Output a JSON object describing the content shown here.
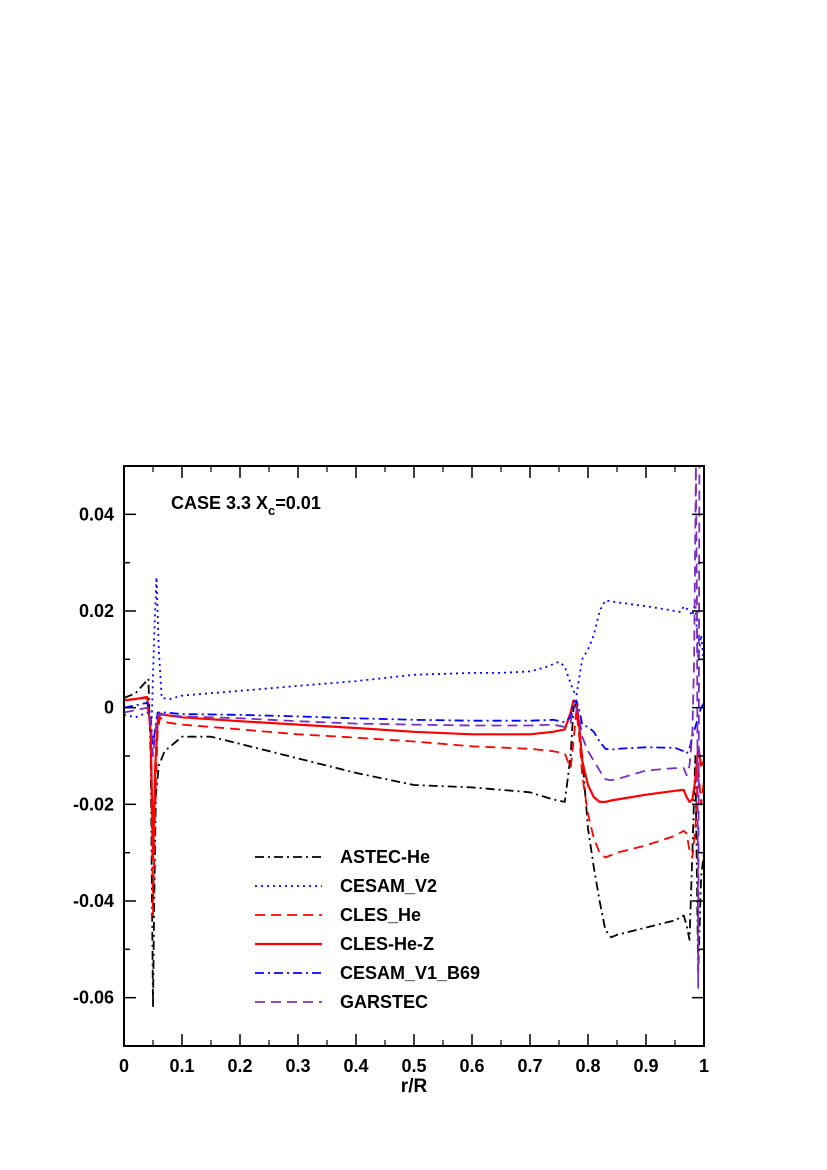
{
  "chart_data": {
    "type": "line",
    "title": "",
    "annotation": {
      "prefix": "CASE 3.3 X",
      "subscript": "c",
      "suffix": "=0.01"
    },
    "xlabel": "r/R",
    "ylabel": "",
    "xlim": [
      0,
      1
    ],
    "ylim": [
      -0.07,
      0.05
    ],
    "x_ticks": [
      0,
      0.1,
      0.2,
      0.3,
      0.4,
      0.5,
      0.6,
      0.7,
      0.8,
      0.9,
      1
    ],
    "x_tick_labels": [
      "0",
      "0.1",
      "0.2",
      "0.3",
      "0.4",
      "0.5",
      "0.6",
      "0.7",
      "0.8",
      "0.9",
      "1"
    ],
    "y_ticks": [
      -0.06,
      -0.04,
      -0.02,
      0,
      0.02,
      0.04
    ],
    "y_tick_labels": [
      "-0.06",
      "-0.04",
      "-0.02",
      "0",
      "0.02",
      "0.04"
    ],
    "grid": false,
    "legend_position": "lower-center",
    "series": [
      {
        "name": "ASTEC-He",
        "color": "#000000",
        "dash": "dashdot",
        "x": [
          0,
          0.02,
          0.035,
          0.042,
          0.046,
          0.05,
          0.052,
          0.055,
          0.06,
          0.07,
          0.1,
          0.15,
          0.2,
          0.3,
          0.4,
          0.5,
          0.6,
          0.7,
          0.74,
          0.76,
          0.77,
          0.775,
          0.78,
          0.79,
          0.8,
          0.81,
          0.82,
          0.83,
          0.84,
          0.85,
          0.9,
          0.95,
          0.965,
          0.97,
          0.975,
          0.98,
          0.985,
          0.99,
          0.995,
          1.0
        ],
        "y": [
          0.002,
          0.003,
          0.005,
          0.006,
          -0.01,
          -0.062,
          -0.04,
          -0.018,
          -0.012,
          -0.009,
          -0.006,
          -0.006,
          -0.0075,
          -0.0105,
          -0.0135,
          -0.016,
          -0.0165,
          -0.0175,
          -0.019,
          -0.0195,
          -0.01,
          0.0,
          0.001,
          -0.01,
          -0.025,
          -0.033,
          -0.04,
          -0.046,
          -0.0475,
          -0.047,
          -0.0455,
          -0.044,
          -0.043,
          -0.045,
          -0.048,
          -0.03,
          -0.01,
          -0.055,
          -0.035,
          -0.03
        ]
      },
      {
        "name": "CESAM_V2",
        "color": "#0000ff",
        "dash": "dotted",
        "x": [
          0,
          0.02,
          0.04,
          0.048,
          0.052,
          0.056,
          0.06,
          0.065,
          0.08,
          0.1,
          0.2,
          0.3,
          0.4,
          0.5,
          0.6,
          0.65,
          0.7,
          0.73,
          0.75,
          0.76,
          0.77,
          0.775,
          0.78,
          0.79,
          0.8,
          0.81,
          0.82,
          0.83,
          0.85,
          0.9,
          0.95,
          0.96,
          0.965,
          0.97,
          0.975,
          0.98,
          0.985,
          0.99,
          0.995,
          1.0
        ],
        "y": [
          -0.0015,
          -0.002,
          -0.001,
          -0.002,
          0.015,
          0.027,
          0.012,
          0.002,
          0.0018,
          0.0025,
          0.0035,
          0.0045,
          0.0055,
          0.0068,
          0.0072,
          0.0072,
          0.0075,
          0.0085,
          0.0095,
          0.0085,
          0.005,
          0.0035,
          0.0025,
          0.01,
          0.012,
          0.015,
          0.02,
          0.0222,
          0.0218,
          0.021,
          0.02,
          0.0198,
          0.021,
          0.0205,
          0.02,
          0.019,
          0.022,
          0.01,
          0.015,
          0.009
        ]
      },
      {
        "name": "CLES_He",
        "color": "#ff0000",
        "dash": "dashed",
        "x": [
          0,
          0.02,
          0.04,
          0.046,
          0.05,
          0.054,
          0.058,
          0.062,
          0.07,
          0.1,
          0.2,
          0.3,
          0.4,
          0.5,
          0.6,
          0.7,
          0.74,
          0.76,
          0.77,
          0.775,
          0.78,
          0.785,
          0.79,
          0.8,
          0.81,
          0.82,
          0.83,
          0.84,
          0.85,
          0.9,
          0.95,
          0.965,
          0.97,
          0.975,
          0.98,
          0.985,
          0.99,
          0.995,
          1.0
        ],
        "y": [
          0.0015,
          0.0018,
          0.002,
          -0.005,
          -0.043,
          -0.02,
          -0.005,
          -0.002,
          -0.003,
          -0.0035,
          -0.0045,
          -0.0055,
          -0.0062,
          -0.007,
          -0.008,
          -0.0085,
          -0.009,
          -0.0095,
          -0.0125,
          -0.007,
          -0.0005,
          -0.006,
          -0.014,
          -0.022,
          -0.027,
          -0.03,
          -0.031,
          -0.0305,
          -0.03,
          -0.0285,
          -0.0265,
          -0.0255,
          -0.026,
          -0.0295,
          -0.031,
          -0.025,
          -0.012,
          -0.02,
          -0.015
        ]
      },
      {
        "name": "CLES-He-Z",
        "color": "#ff0000",
        "dash": "solid",
        "x": [
          0,
          0.02,
          0.04,
          0.046,
          0.05,
          0.054,
          0.058,
          0.062,
          0.07,
          0.1,
          0.2,
          0.3,
          0.4,
          0.5,
          0.6,
          0.7,
          0.74,
          0.76,
          0.77,
          0.775,
          0.78,
          0.785,
          0.79,
          0.8,
          0.81,
          0.82,
          0.83,
          0.84,
          0.85,
          0.9,
          0.95,
          0.965,
          0.97,
          0.975,
          0.98,
          0.985,
          0.99,
          0.995,
          1.0
        ],
        "y": [
          0.0015,
          0.0018,
          0.0022,
          -0.005,
          -0.031,
          -0.012,
          -0.003,
          -0.0012,
          -0.0015,
          -0.002,
          -0.0028,
          -0.0035,
          -0.0042,
          -0.005,
          -0.0055,
          -0.0055,
          -0.005,
          -0.0045,
          -0.001,
          0.0015,
          0.0012,
          -0.004,
          -0.011,
          -0.016,
          -0.0185,
          -0.0195,
          -0.0195,
          -0.0192,
          -0.019,
          -0.018,
          -0.0172,
          -0.017,
          -0.0185,
          -0.0195,
          -0.019,
          -0.015,
          -0.008,
          -0.012,
          -0.011
        ]
      },
      {
        "name": "CESAM_V1_B69",
        "color": "#0000ff",
        "dash": "dashdot",
        "x": [
          0,
          0.02,
          0.04,
          0.046,
          0.05,
          0.054,
          0.058,
          0.062,
          0.07,
          0.1,
          0.2,
          0.3,
          0.4,
          0.5,
          0.6,
          0.7,
          0.74,
          0.76,
          0.77,
          0.775,
          0.78,
          0.785,
          0.79,
          0.8,
          0.81,
          0.82,
          0.83,
          0.84,
          0.85,
          0.9,
          0.95,
          0.965,
          0.97,
          0.975,
          0.98,
          0.985,
          0.99,
          0.995,
          1.0
        ],
        "y": [
          0.0,
          0.0005,
          0.001,
          -0.002,
          -0.008,
          -0.004,
          -0.001,
          -0.001,
          -0.001,
          -0.0013,
          -0.0015,
          -0.0018,
          -0.0022,
          -0.0025,
          -0.0027,
          -0.0027,
          -0.0025,
          -0.003,
          -0.002,
          0.001,
          0.0015,
          -0.0005,
          -0.0035,
          -0.004,
          -0.005,
          -0.007,
          -0.0085,
          -0.0087,
          -0.0085,
          -0.0082,
          -0.0083,
          -0.009,
          -0.0095,
          -0.0085,
          -0.006,
          -0.004,
          -0.002,
          0.0,
          0.001
        ]
      },
      {
        "name": "GARSTEC",
        "color": "#7b2fbe",
        "dash": "dashed",
        "x": [
          0,
          0.02,
          0.04,
          0.046,
          0.05,
          0.054,
          0.058,
          0.062,
          0.07,
          0.1,
          0.2,
          0.3,
          0.4,
          0.5,
          0.6,
          0.7,
          0.74,
          0.76,
          0.77,
          0.775,
          0.78,
          0.785,
          0.79,
          0.8,
          0.81,
          0.82,
          0.83,
          0.84,
          0.85,
          0.9,
          0.95,
          0.965,
          0.97,
          0.975,
          0.98,
          0.983,
          0.986,
          0.988,
          0.99,
          0.992
        ],
        "y": [
          -0.001,
          -0.0005,
          0.0,
          -0.003,
          -0.01,
          -0.005,
          -0.0015,
          -0.0015,
          -0.0015,
          -0.0018,
          -0.0022,
          -0.0028,
          -0.0033,
          -0.0035,
          -0.0037,
          -0.0037,
          -0.0035,
          -0.004,
          -0.003,
          0.0,
          0.0,
          -0.002,
          -0.006,
          -0.009,
          -0.011,
          -0.013,
          -0.0148,
          -0.015,
          -0.0148,
          -0.013,
          -0.0125,
          -0.0125,
          -0.014,
          -0.012,
          -0.005,
          0.01,
          0.05,
          0.02,
          -0.058,
          0.05
        ]
      }
    ]
  }
}
